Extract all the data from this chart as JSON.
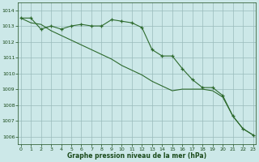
{
  "line1_x": [
    0,
    1,
    2,
    3,
    4,
    5,
    6,
    7,
    8,
    9,
    10,
    11,
    12,
    13,
    14,
    15,
    16,
    17,
    18,
    19,
    20,
    21,
    22,
    23
  ],
  "line1_y": [
    1013.5,
    1013.5,
    1012.8,
    1013.0,
    1012.8,
    1013.0,
    1013.1,
    1013.0,
    1013.0,
    1013.4,
    1013.3,
    1013.2,
    1012.9,
    1011.5,
    1011.1,
    1011.1,
    1010.3,
    1009.6,
    1009.1,
    1009.1,
    1008.6,
    1007.3,
    1006.5,
    1006.1
  ],
  "line2_x": [
    0,
    1,
    2,
    3,
    4,
    5,
    6,
    7,
    8,
    9,
    10,
    11,
    12,
    13,
    14,
    15,
    16,
    17,
    18,
    19,
    20,
    21,
    22,
    23
  ],
  "line2_y": [
    1013.5,
    1013.2,
    1013.1,
    1012.7,
    1012.4,
    1012.1,
    1011.8,
    1011.5,
    1011.2,
    1010.9,
    1010.5,
    1010.2,
    1009.9,
    1009.5,
    1009.2,
    1008.9,
    1009.0,
    1009.0,
    1009.0,
    1008.9,
    1008.5,
    1007.3,
    1006.5,
    1006.1
  ],
  "line_color": "#2d6a2d",
  "marker": "+",
  "bg_color": "#cce8e8",
  "grid_color": "#99bbbb",
  "text_color": "#1a4a1a",
  "xlabel": "Graphe pression niveau de la mer (hPa)",
  "ylim": [
    1005.5,
    1014.5
  ],
  "yticks": [
    1006,
    1007,
    1008,
    1009,
    1010,
    1011,
    1012,
    1013,
    1014
  ],
  "xticks": [
    0,
    1,
    2,
    3,
    4,
    5,
    6,
    7,
    8,
    9,
    10,
    11,
    12,
    13,
    14,
    15,
    16,
    17,
    18,
    19,
    20,
    21,
    22,
    23
  ]
}
